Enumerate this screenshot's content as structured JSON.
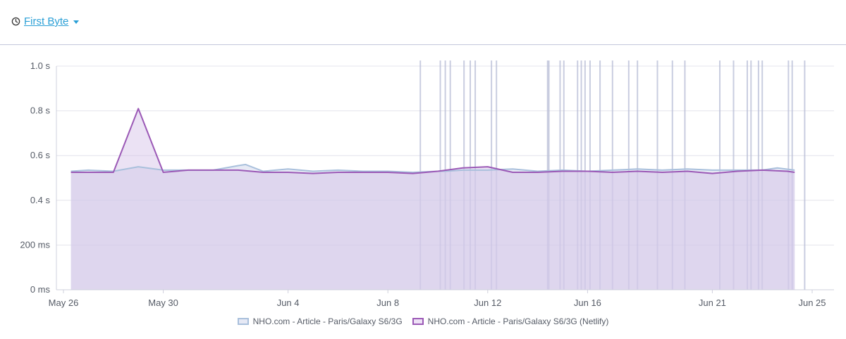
{
  "header": {
    "metric_label": "First Byte",
    "icon": "clock-icon",
    "accent_color": "#2a9fd6"
  },
  "chart_data": {
    "type": "area",
    "title": "",
    "xlabel": "",
    "ylabel": "",
    "ylim": [
      0,
      1.0
    ],
    "y_ticks": [
      {
        "value": 0,
        "label": "0 ms"
      },
      {
        "value": 0.2,
        "label": "200 ms"
      },
      {
        "value": 0.4,
        "label": "0.4 s"
      },
      {
        "value": 0.6,
        "label": "0.6 s"
      },
      {
        "value": 0.8,
        "label": "0.8 s"
      },
      {
        "value": 1.0,
        "label": "1.0 s"
      }
    ],
    "x_ticks": [
      {
        "value": 0,
        "label": "May 26"
      },
      {
        "value": 4,
        "label": "May 30"
      },
      {
        "value": 9,
        "label": "Jun 4"
      },
      {
        "value": 13,
        "label": "Jun 8"
      },
      {
        "value": 17,
        "label": "Jun 12"
      },
      {
        "value": 21,
        "label": "Jun 16"
      },
      {
        "value": 26,
        "label": "Jun 21"
      },
      {
        "value": 30,
        "label": "Jun 25"
      }
    ],
    "grid": true,
    "legend_position": "bottom",
    "series": [
      {
        "name": "NHO.com - Article - Paris/Galaxy S6/3G",
        "color": "#a9c0dc",
        "fill": "rgba(212,216,236,0.55)",
        "x": [
          0.3,
          1,
          2,
          3,
          4,
          5,
          6,
          7,
          7.3,
          8,
          9,
          10,
          11,
          12,
          13,
          14,
          15,
          15.3,
          16,
          17,
          18,
          19,
          20,
          21,
          22,
          23,
          24,
          25,
          26,
          27,
          28,
          28.6,
          29.3
        ],
        "values": [
          0.53,
          0.535,
          0.53,
          0.55,
          0.535,
          0.535,
          0.535,
          0.555,
          0.56,
          0.53,
          0.54,
          0.53,
          0.535,
          0.53,
          0.53,
          0.525,
          0.53,
          0.53,
          0.535,
          0.535,
          0.54,
          0.53,
          0.535,
          0.53,
          0.535,
          0.54,
          0.535,
          0.54,
          0.535,
          0.535,
          0.535,
          0.545,
          0.535
        ]
      },
      {
        "name": "NHO.com - Article - Paris/Galaxy S6/3G (Netlify)",
        "color": "#9b59b6",
        "fill": "rgba(210,190,230,0.45)",
        "x": [
          0.3,
          1,
          2,
          3,
          4,
          5,
          6,
          7,
          8,
          9,
          10,
          11,
          12,
          13,
          14,
          15,
          16,
          17,
          18,
          19,
          20,
          21,
          22,
          23,
          24,
          25,
          26,
          27,
          28,
          29,
          29.3
        ],
        "values": [
          0.525,
          0.525,
          0.525,
          0.81,
          0.525,
          0.535,
          0.535,
          0.535,
          0.525,
          0.525,
          0.52,
          0.525,
          0.525,
          0.525,
          0.52,
          0.53,
          0.545,
          0.55,
          0.525,
          0.525,
          0.53,
          0.53,
          0.525,
          0.53,
          0.525,
          0.53,
          0.52,
          0.53,
          0.535,
          0.53,
          0.525
        ]
      }
    ],
    "event_markers": {
      "color": "#b8bdd6",
      "x": [
        14.3,
        15.1,
        15.3,
        15.5,
        16.05,
        16.3,
        16.5,
        17.15,
        17.35,
        19.4,
        19.45,
        19.9,
        20.05,
        20.6,
        20.75,
        20.9,
        21.1,
        21.5,
        22.0,
        22.65,
        23.0,
        23.8,
        24.4,
        24.9,
        26.3,
        26.85,
        27.4,
        27.55,
        27.85,
        28.0,
        29.05,
        29.2,
        29.7
      ]
    }
  },
  "legend": {
    "items": [
      {
        "label": "NHO.com - Article - Paris/Galaxy S6/3G",
        "border": "#a9c0dc",
        "fill": "#e6e9f5"
      },
      {
        "label": "NHO.com - Article - Paris/Galaxy S6/3G (Netlify)",
        "border": "#9b59b6",
        "fill": "#ede1f5"
      }
    ]
  }
}
